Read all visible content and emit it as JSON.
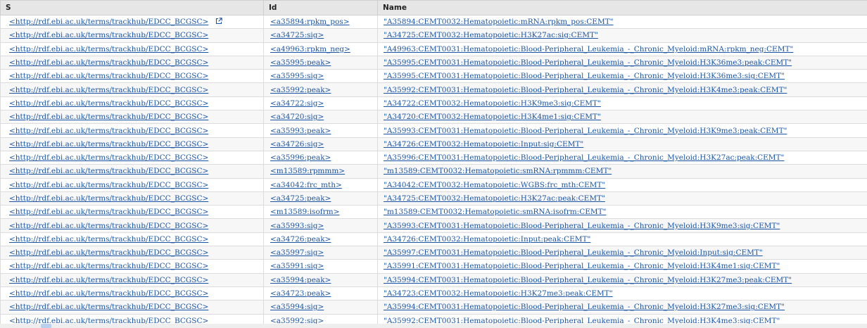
{
  "table": {
    "headers": {
      "s": "S",
      "id": "Id",
      "name": "Name"
    },
    "external_link_icon": "external-link-icon",
    "rows": [
      {
        "s": "<http://rdf.ebi.ac.uk/terms/trackhub/EDCC_BCGSC>",
        "id": "<a35894:rpkm_pos>",
        "name": "\"A35894:CEMT0032:Hematopoietic:mRNA:rpkm_pos:CEMT\""
      },
      {
        "s": "<http://rdf.ebi.ac.uk/terms/trackhub/EDCC_BCGSC>",
        "id": "<a34725:sig>",
        "name": "\"A34725:CEMT0032:Hematopoietic:H3K27ac:sig:CEMT\""
      },
      {
        "s": "<http://rdf.ebi.ac.uk/terms/trackhub/EDCC_BCGSC>",
        "id": "<a49963:rpkm_neg>",
        "name": "\"A49963:CEMT0031:Hematopoietic:Blood-Peripheral_Leukemia_-_Chronic_Myeloid:mRNA:rpkm_neg:CEMT\""
      },
      {
        "s": "<http://rdf.ebi.ac.uk/terms/trackhub/EDCC_BCGSC>",
        "id": "<a35995:peak>",
        "name": "\"A35995:CEMT0031:Hematopoietic:Blood-Peripheral_Leukemia_-_Chronic_Myeloid:H3K36me3:peak:CEMT\""
      },
      {
        "s": "<http://rdf.ebi.ac.uk/terms/trackhub/EDCC_BCGSC>",
        "id": "<a35995:sig>",
        "name": "\"A35995:CEMT0031:Hematopoietic:Blood-Peripheral_Leukemia_-_Chronic_Myeloid:H3K36me3:sig:CEMT\""
      },
      {
        "s": "<http://rdf.ebi.ac.uk/terms/trackhub/EDCC_BCGSC>",
        "id": "<a35992:peak>",
        "name": "\"A35992:CEMT0031:Hematopoietic:Blood-Peripheral_Leukemia_-_Chronic_Myeloid:H3K4me3:peak:CEMT\""
      },
      {
        "s": "<http://rdf.ebi.ac.uk/terms/trackhub/EDCC_BCGSC>",
        "id": "<a34722:sig>",
        "name": "\"A34722:CEMT0032:Hematopoietic:H3K9me3:sig:CEMT\""
      },
      {
        "s": "<http://rdf.ebi.ac.uk/terms/trackhub/EDCC_BCGSC>",
        "id": "<a34720:sig>",
        "name": "\"A34720:CEMT0032:Hematopoietic:H3K4me1:sig:CEMT\""
      },
      {
        "s": "<http://rdf.ebi.ac.uk/terms/trackhub/EDCC_BCGSC>",
        "id": "<a35993:peak>",
        "name": "\"A35993:CEMT0031:Hematopoietic:Blood-Peripheral_Leukemia_-_Chronic_Myeloid:H3K9me3:peak:CEMT\""
      },
      {
        "s": "<http://rdf.ebi.ac.uk/terms/trackhub/EDCC_BCGSC>",
        "id": "<a34726:sig>",
        "name": "\"A34726:CEMT0032:Hematopoietic:Input:sig:CEMT\""
      },
      {
        "s": "<http://rdf.ebi.ac.uk/terms/trackhub/EDCC_BCGSC>",
        "id": "<a35996:peak>",
        "name": "\"A35996:CEMT0031:Hematopoietic:Blood-Peripheral_Leukemia_-_Chronic_Myeloid:H3K27ac:peak:CEMT\""
      },
      {
        "s": "<http://rdf.ebi.ac.uk/terms/trackhub/EDCC_BCGSC>",
        "id": "<m13589:rpmmm>",
        "name": "\"m13589:CEMT0032:Hematopoietic:smRNA:rpmmm:CEMT\""
      },
      {
        "s": "<http://rdf.ebi.ac.uk/terms/trackhub/EDCC_BCGSC>",
        "id": "<a34042:frc_mth>",
        "name": "\"A34042:CEMT0032:Hematopoietic:WGBS:frc_mth:CEMT\""
      },
      {
        "s": "<http://rdf.ebi.ac.uk/terms/trackhub/EDCC_BCGSC>",
        "id": "<a34725:peak>",
        "name": "\"A34725:CEMT0032:Hematopoietic:H3K27ac:peak:CEMT\""
      },
      {
        "s": "<http://rdf.ebi.ac.uk/terms/trackhub/EDCC_BCGSC>",
        "id": "<m13589:isofrm>",
        "name": "\"m13589:CEMT0032:Hematopoietic:smRNA:isofrm:CEMT\""
      },
      {
        "s": "<http://rdf.ebi.ac.uk/terms/trackhub/EDCC_BCGSC>",
        "id": "<a35993:sig>",
        "name": "\"A35993:CEMT0031:Hematopoietic:Blood-Peripheral_Leukemia_-_Chronic_Myeloid:H3K9me3:sig:CEMT\""
      },
      {
        "s": "<http://rdf.ebi.ac.uk/terms/trackhub/EDCC_BCGSC>",
        "id": "<a34726:peak>",
        "name": "\"A34726:CEMT0032:Hematopoietic:Input:peak:CEMT\""
      },
      {
        "s": "<http://rdf.ebi.ac.uk/terms/trackhub/EDCC_BCGSC>",
        "id": "<a35997:sig>",
        "name": "\"A35997:CEMT0031:Hematopoietic:Blood-Peripheral_Leukemia_-_Chronic_Myeloid:Input:sig:CEMT\""
      },
      {
        "s": "<http://rdf.ebi.ac.uk/terms/trackhub/EDCC_BCGSC>",
        "id": "<a35991:sig>",
        "name": "\"A35991:CEMT0031:Hematopoietic:Blood-Peripheral_Leukemia_-_Chronic_Myeloid:H3K4me1:sig:CEMT\""
      },
      {
        "s": "<http://rdf.ebi.ac.uk/terms/trackhub/EDCC_BCGSC>",
        "id": "<a35994:peak>",
        "name": "\"A35994:CEMT0031:Hematopoietic:Blood-Peripheral_Leukemia_-_Chronic_Myeloid:H3K27me3:peak:CEMT\""
      },
      {
        "s": "<http://rdf.ebi.ac.uk/terms/trackhub/EDCC_BCGSC>",
        "id": "<a34723:peak>",
        "name": "\"A34723:CEMT0032:Hematopoietic:H3K27me3:peak:CEMT\""
      },
      {
        "s": "<http://rdf.ebi.ac.uk/terms/trackhub/EDCC_BCGSC>",
        "id": "<a35994:sig>",
        "name": "\"A35994:CEMT0031:Hematopoietic:Blood-Peripheral_Leukemia_-_Chronic_Myeloid:H3K27me3:sig:CEMT\""
      },
      {
        "s": "<http://rdf.ebi.ac.uk/terms/trackhub/EDCC_BCGSC>",
        "id": "<a35992:sig>",
        "name": "\"A35992:CEMT0031:Hematopoietic:Blood-Peripheral_Leukemia_-_Chronic_Myeloid:H3K4me3:sig:CEMT\""
      }
    ]
  },
  "colors": {
    "link": "#1a55a5",
    "header_bg": "#e6e6e6",
    "row_alt_bg": "#f7f7f7",
    "scrollbar_thumb": "#b8cfee"
  }
}
